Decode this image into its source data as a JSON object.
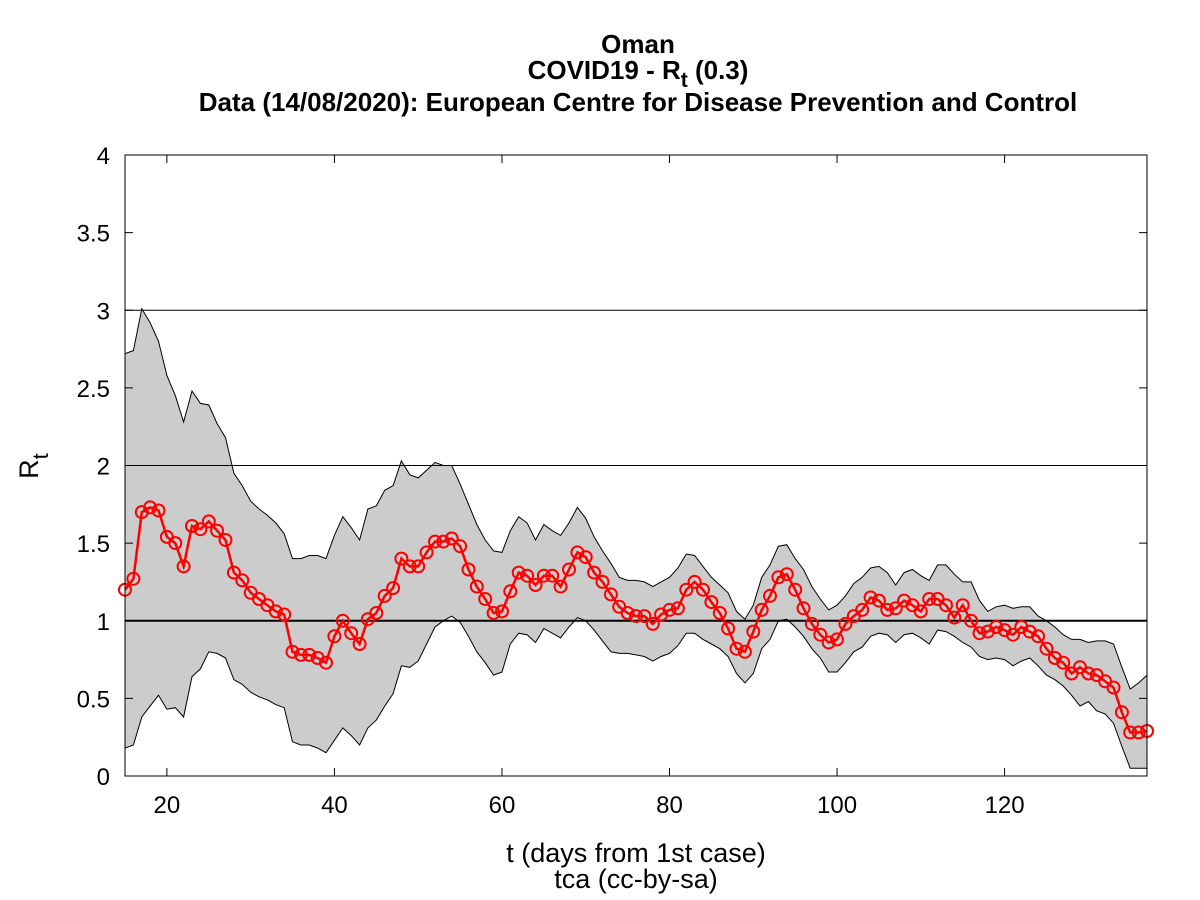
{
  "chart_data": {
    "type": "line",
    "title": {
      "line1": "Oman",
      "line2_prefix": "COVID19 - R",
      "line2_sub": "t",
      "line2_suffix": " (0.3)",
      "line3": "Data (14/08/2020): European Centre for Disease Prevention and Control"
    },
    "xlabel": "t (days from 1st case)",
    "credit": "tca (cc-by-sa)",
    "ylabel_main": "R",
    "ylabel_sub": "t",
    "xlim": [
      15,
      137
    ],
    "ylim": [
      0,
      4
    ],
    "xticks": [
      20,
      40,
      60,
      80,
      100,
      120
    ],
    "yticks": [
      0,
      0.5,
      1,
      1.5,
      2,
      2.5,
      3,
      3.5,
      4
    ],
    "grid": {
      "horizontal_lines": [
        1,
        2,
        3
      ]
    },
    "colors": {
      "series": "#ff0000",
      "band": "#cccccc",
      "band_edge": "#000000",
      "axis": "#000000"
    },
    "band": {
      "x": [
        15,
        16,
        17,
        18,
        19,
        20,
        21,
        22,
        23,
        24,
        25,
        26,
        27,
        28,
        29,
        30,
        31,
        32,
        33,
        34,
        35,
        36,
        37,
        38,
        39,
        40,
        41,
        42,
        43,
        44,
        45,
        46,
        47,
        48,
        49,
        50,
        51,
        52,
        53,
        54,
        55,
        56,
        57,
        58,
        59,
        60,
        61,
        62,
        63,
        64,
        65,
        66,
        67,
        68,
        69,
        70,
        71,
        72,
        73,
        74,
        75,
        76,
        77,
        78,
        79,
        80,
        81,
        82,
        83,
        84,
        85,
        86,
        87,
        88,
        89,
        90,
        91,
        92,
        93,
        94,
        95,
        96,
        97,
        98,
        99,
        100,
        101,
        102,
        103,
        104,
        105,
        106,
        107,
        108,
        109,
        110,
        111,
        112,
        113,
        114,
        115,
        116,
        117,
        118,
        119,
        120,
        121,
        122,
        123,
        124,
        125,
        126,
        127,
        128,
        129,
        130,
        131,
        132,
        133,
        134,
        135,
        136,
        137
      ],
      "upper": [
        2.72,
        2.74,
        3.01,
        2.92,
        2.8,
        2.58,
        2.45,
        2.28,
        2.48,
        2.4,
        2.39,
        2.27,
        2.18,
        1.95,
        1.87,
        1.77,
        1.72,
        1.68,
        1.63,
        1.56,
        1.4,
        1.4,
        1.42,
        1.42,
        1.4,
        1.55,
        1.67,
        1.6,
        1.52,
        1.72,
        1.74,
        1.84,
        1.87,
        2.03,
        1.94,
        1.92,
        1.97,
        2.02,
        2.0,
        2.0,
        1.88,
        1.75,
        1.62,
        1.52,
        1.45,
        1.44,
        1.58,
        1.67,
        1.63,
        1.52,
        1.62,
        1.58,
        1.55,
        1.63,
        1.73,
        1.66,
        1.54,
        1.45,
        1.37,
        1.28,
        1.26,
        1.26,
        1.25,
        1.22,
        1.25,
        1.28,
        1.34,
        1.43,
        1.42,
        1.35,
        1.28,
        1.23,
        1.18,
        1.06,
        1.01,
        1.1,
        1.28,
        1.36,
        1.48,
        1.49,
        1.4,
        1.33,
        1.22,
        1.14,
        1.07,
        1.1,
        1.16,
        1.24,
        1.28,
        1.34,
        1.35,
        1.31,
        1.23,
        1.31,
        1.33,
        1.29,
        1.26,
        1.36,
        1.36,
        1.3,
        1.25,
        1.25,
        1.13,
        1.06,
        1.09,
        1.1,
        1.08,
        1.09,
        1.09,
        1.03,
        1.0,
        0.96,
        0.91,
        0.88,
        0.88,
        0.86,
        0.87,
        0.87,
        0.85,
        0.7,
        0.56,
        0.6,
        0.65
      ],
      "lower": [
        0.18,
        0.2,
        0.38,
        0.45,
        0.52,
        0.43,
        0.44,
        0.38,
        0.64,
        0.69,
        0.8,
        0.79,
        0.76,
        0.62,
        0.59,
        0.54,
        0.51,
        0.49,
        0.46,
        0.44,
        0.22,
        0.2,
        0.2,
        0.18,
        0.15,
        0.23,
        0.31,
        0.26,
        0.2,
        0.31,
        0.36,
        0.45,
        0.53,
        0.71,
        0.7,
        0.74,
        0.85,
        0.96,
        1.0,
        1.03,
        0.99,
        0.9,
        0.8,
        0.73,
        0.65,
        0.67,
        0.85,
        0.92,
        0.91,
        0.86,
        0.95,
        0.92,
        0.89,
        0.96,
        1.02,
        1.0,
        0.94,
        0.87,
        0.8,
        0.79,
        0.79,
        0.78,
        0.77,
        0.74,
        0.77,
        0.79,
        0.84,
        0.92,
        0.92,
        0.88,
        0.85,
        0.82,
        0.77,
        0.66,
        0.6,
        0.66,
        0.82,
        0.88,
        1.0,
        1.01,
        0.96,
        0.9,
        0.82,
        0.76,
        0.67,
        0.67,
        0.73,
        0.8,
        0.83,
        0.9,
        0.92,
        0.91,
        0.86,
        0.91,
        0.92,
        0.89,
        0.85,
        0.94,
        0.93,
        0.9,
        0.86,
        0.83,
        0.77,
        0.75,
        0.76,
        0.75,
        0.71,
        0.74,
        0.76,
        0.71,
        0.65,
        0.62,
        0.58,
        0.52,
        0.45,
        0.48,
        0.42,
        0.4,
        0.34,
        0.19,
        0.05,
        0.05,
        0.05
      ]
    },
    "series": [
      {
        "x": [
          15,
          16,
          17,
          18,
          19,
          20,
          21,
          22,
          23,
          24,
          25,
          26,
          27,
          28,
          29,
          30,
          31,
          32,
          33,
          34,
          35,
          36,
          37,
          38,
          39,
          40,
          41,
          42,
          43,
          44,
          45,
          46,
          47,
          48,
          49,
          50,
          51,
          52,
          53,
          54,
          55,
          56,
          57,
          58,
          59,
          60,
          61,
          62,
          63,
          64,
          65,
          66,
          67,
          68,
          69,
          70,
          71,
          72,
          73,
          74,
          75,
          76,
          77,
          78,
          79,
          80,
          81,
          82,
          83,
          84,
          85,
          86,
          87,
          88,
          89,
          90,
          91,
          92,
          93,
          94,
          95,
          96,
          97,
          98,
          99,
          100,
          101,
          102,
          103,
          104,
          105,
          106,
          107,
          108,
          109,
          110,
          111,
          112,
          113,
          114,
          115,
          116,
          117,
          118,
          119,
          120,
          121,
          122,
          123,
          124,
          125,
          126,
          127,
          128,
          129,
          130,
          131,
          132,
          133,
          134,
          135,
          136,
          137
        ],
        "values": [
          1.2,
          1.27,
          1.7,
          1.73,
          1.71,
          1.54,
          1.5,
          1.35,
          1.61,
          1.59,
          1.64,
          1.58,
          1.52,
          1.31,
          1.26,
          1.18,
          1.14,
          1.1,
          1.06,
          1.04,
          0.8,
          0.78,
          0.78,
          0.76,
          0.73,
          0.9,
          1.0,
          0.92,
          0.85,
          1.01,
          1.05,
          1.16,
          1.21,
          1.4,
          1.35,
          1.35,
          1.44,
          1.51,
          1.51,
          1.53,
          1.48,
          1.33,
          1.22,
          1.14,
          1.05,
          1.06,
          1.19,
          1.31,
          1.29,
          1.23,
          1.29,
          1.29,
          1.22,
          1.33,
          1.44,
          1.41,
          1.31,
          1.25,
          1.17,
          1.09,
          1.05,
          1.03,
          1.03,
          0.98,
          1.04,
          1.07,
          1.08,
          1.2,
          1.25,
          1.2,
          1.12,
          1.05,
          0.95,
          0.82,
          0.8,
          0.93,
          1.07,
          1.16,
          1.28,
          1.3,
          1.2,
          1.08,
          0.98,
          0.91,
          0.86,
          0.88,
          0.98,
          1.03,
          1.07,
          1.15,
          1.13,
          1.07,
          1.08,
          1.13,
          1.1,
          1.06,
          1.14,
          1.14,
          1.1,
          1.02,
          1.1,
          1.0,
          0.92,
          0.93,
          0.96,
          0.94,
          0.91,
          0.96,
          0.93,
          0.9,
          0.82,
          0.76,
          0.73,
          0.66,
          0.7,
          0.66,
          0.65,
          0.61,
          0.57,
          0.41,
          0.28,
          0.28,
          0.29
        ]
      }
    ]
  }
}
